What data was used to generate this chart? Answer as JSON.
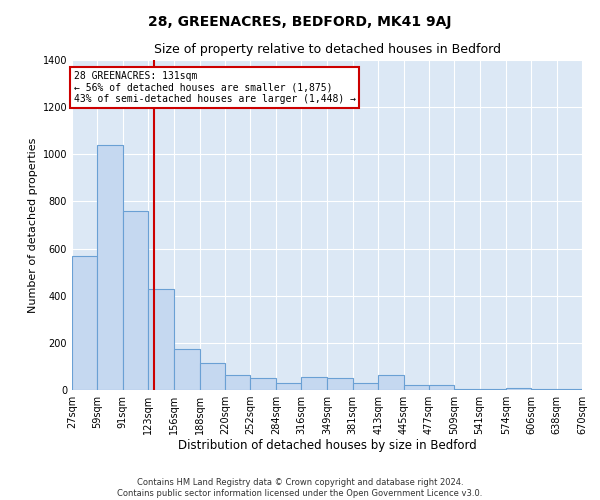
{
  "title": "28, GREENACRES, BEDFORD, MK41 9AJ",
  "subtitle": "Size of property relative to detached houses in Bedford",
  "xlabel": "Distribution of detached houses by size in Bedford",
  "ylabel": "Number of detached properties",
  "bar_color": "#c5d8f0",
  "bar_edge_color": "#6aa0d4",
  "plot_bg_color": "#dce8f5",
  "grid_color": "#ffffff",
  "annotation_line_color": "#cc0000",
  "annotation_box_color": "#cc0000",
  "annotation_text": "28 GREENACRES: 131sqm\n← 56% of detached houses are smaller (1,875)\n43% of semi-detached houses are larger (1,448) →",
  "bins": [
    27,
    59,
    91,
    123,
    156,
    188,
    220,
    252,
    284,
    316,
    349,
    381,
    413,
    445,
    477,
    509,
    541,
    574,
    606,
    638,
    670
  ],
  "values": [
    570,
    1040,
    760,
    430,
    175,
    115,
    65,
    50,
    30,
    55,
    50,
    30,
    65,
    20,
    20,
    5,
    5,
    10,
    5,
    5
  ],
  "red_line_x": 131,
  "ylim": [
    0,
    1400
  ],
  "yticks": [
    0,
    200,
    400,
    600,
    800,
    1000,
    1200,
    1400
  ],
  "footer_text": "Contains HM Land Registry data © Crown copyright and database right 2024.\nContains public sector information licensed under the Open Government Licence v3.0.",
  "title_fontsize": 10,
  "subtitle_fontsize": 9,
  "xlabel_fontsize": 8.5,
  "ylabel_fontsize": 8,
  "tick_fontsize": 7,
  "footer_fontsize": 6
}
